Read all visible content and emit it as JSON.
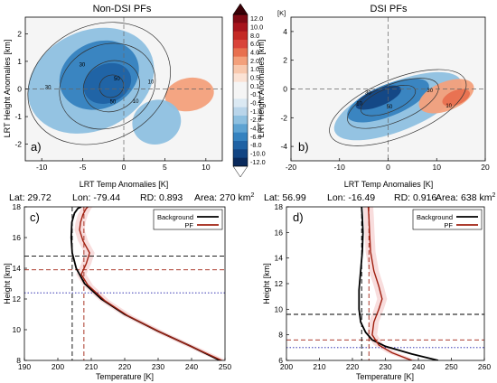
{
  "colorbar": {
    "unit": "[K]",
    "labels": [
      "12.0",
      "10.0",
      "8.0",
      "6.0",
      "4.0",
      "2.0",
      "1.0",
      "0.5",
      "0.1",
      "-0.1",
      "-0.5",
      "-1.0",
      "-2.0",
      "-4.0",
      "-6.0",
      "-8.0",
      "-10.0",
      "-12.0"
    ],
    "colors": [
      "#7f0a14",
      "#a7141c",
      "#c42a25",
      "#d9443a",
      "#e8704f",
      "#f3a07b",
      "#f8c8ad",
      "#fbe2d4",
      "#f5f5f5",
      "#f5f5f5",
      "#dbe9f3",
      "#b9d5ea",
      "#8ec0e0",
      "#5ea3d2",
      "#3582bf",
      "#1f62a4",
      "#124583",
      "#0a2a5c"
    ]
  },
  "chart_data": [
    {
      "panel": "a)",
      "title": "Non-DSI PFs",
      "type": "heatmap",
      "xlabel": "LRT Temp Anomalies [K]",
      "ylabel": "LRT Height Anomalies [km]",
      "xlim": [
        -12,
        12
      ],
      "ylim": [
        -2.6,
        2.6
      ],
      "xticks": [
        -10,
        -5,
        0,
        5,
        10
      ],
      "yticks": [
        -2,
        -1,
        0,
        1,
        2
      ],
      "contour_labels": [
        "10",
        "30",
        "50",
        "50",
        "30",
        "10"
      ],
      "blobs": [
        {
          "x": -4,
          "y": 0.3,
          "rx": 8,
          "ry": 1.8,
          "rot": -25,
          "value": -3
        },
        {
          "x": -3,
          "y": 0.5,
          "rx": 5,
          "ry": 1.2,
          "rot": -25,
          "value": -6
        },
        {
          "x": -2,
          "y": 0.2,
          "rx": 3,
          "ry": 0.7,
          "rot": -25,
          "value": -8
        },
        {
          "x": 8,
          "y": -0.2,
          "rx": 3,
          "ry": 0.6,
          "rot": -10,
          "value": 2
        },
        {
          "x": 4,
          "y": -1.2,
          "rx": 3,
          "ry": 0.8,
          "rot": -20,
          "value": -2
        }
      ],
      "contours": [
        {
          "x": -3,
          "y": 0.2,
          "rx": 9,
          "ry": 2.1,
          "rot": -25
        },
        {
          "x": -2,
          "y": 0.1,
          "rx": 6,
          "ry": 1.5,
          "rot": -25
        },
        {
          "x": -1.5,
          "y": 0.1,
          "rx": 3.5,
          "ry": 0.9,
          "rot": -25
        },
        {
          "x": -1.5,
          "y": 0.1,
          "rx": 1.5,
          "ry": 0.4,
          "rot": -25
        }
      ]
    },
    {
      "panel": "b)",
      "title": "DSI PFs",
      "type": "heatmap",
      "xlabel": "LRT Temp Anomalies [K]",
      "ylabel": "LRT Height Anomalies [km]",
      "xlim": [
        -20,
        20
      ],
      "ylim": [
        -5,
        5
      ],
      "xticks": [
        -20,
        -10,
        0,
        10,
        20
      ],
      "yticks": [
        -4,
        -2,
        0,
        2,
        4
      ],
      "contour_labels": [
        "10",
        "30",
        "50",
        "30",
        "10"
      ],
      "blobs": [
        {
          "x": 2,
          "y": -1.2,
          "rx": 14,
          "ry": 1.7,
          "rot": -22,
          "value": -3
        },
        {
          "x": 0,
          "y": -0.8,
          "rx": 9,
          "ry": 1.1,
          "rot": -22,
          "value": -6
        },
        {
          "x": -2,
          "y": -0.6,
          "rx": 5,
          "ry": 0.6,
          "rot": -22,
          "value": -10
        },
        {
          "x": 12,
          "y": -0.5,
          "rx": 6,
          "ry": 1.0,
          "rot": -22,
          "value": 2
        },
        {
          "x": 14,
          "y": -0.6,
          "rx": 3,
          "ry": 0.5,
          "rot": -22,
          "value": 4
        }
      ],
      "contours": [
        {
          "x": 2,
          "y": -1.3,
          "rx": 15,
          "ry": 2.0,
          "rot": -22
        },
        {
          "x": 1,
          "y": -1.0,
          "rx": 10,
          "ry": 1.3,
          "rot": -22
        },
        {
          "x": 0,
          "y": -0.8,
          "rx": 6,
          "ry": 0.8,
          "rot": -22
        }
      ]
    },
    {
      "panel": "c)",
      "type": "line",
      "header": {
        "lat": "Lat: 29.72",
        "lon": "Lon: -79.44",
        "rd": "RD: 0.893",
        "area": "Area: 270 km",
        "area_exp": "2"
      },
      "xlabel": "Temperature [K]",
      "ylabel": "Height [km]",
      "xlim": [
        190,
        250
      ],
      "ylim": [
        8,
        18
      ],
      "xticks": [
        190,
        200,
        210,
        220,
        230,
        240,
        250
      ],
      "yticks": [
        8,
        10,
        12,
        14,
        16,
        18
      ],
      "series": [
        {
          "name": "Background",
          "color": "#000000",
          "x": [
            248.5,
            240,
            230,
            220,
            213,
            208,
            205.5,
            204.3,
            204.0,
            204.2,
            205.0,
            206.0,
            207.0
          ],
          "y": [
            8.0,
            8.9,
            9.9,
            11.0,
            12.0,
            13.0,
            14.0,
            15.0,
            16.0,
            17.0,
            17.6,
            17.9,
            18.0
          ]
        },
        {
          "name": "PF",
          "color": "#a02010",
          "x": [
            249,
            241,
            231,
            221,
            214,
            209,
            207,
            208.5,
            209.5,
            207.5,
            206.5,
            206.8,
            207.5,
            208.5,
            209.0
          ],
          "y": [
            8.0,
            8.8,
            9.8,
            10.9,
            11.9,
            12.9,
            13.6,
            14.3,
            15.0,
            15.8,
            16.5,
            17.0,
            17.5,
            17.9,
            18.0
          ]
        }
      ],
      "hlines": [
        {
          "y": 14.8,
          "color": "#000000",
          "style": "dash"
        },
        {
          "y": 13.9,
          "color": "#a02010",
          "style": "dash"
        },
        {
          "y": 12.4,
          "color": "#1a1aa8",
          "style": "dot"
        }
      ],
      "vlines": [
        {
          "x": 204.3,
          "color": "#000000",
          "style": "dash"
        },
        {
          "x": 207.8,
          "color": "#a02010",
          "style": "dash"
        }
      ],
      "legend_position": "top-right"
    },
    {
      "panel": "d)",
      "type": "line",
      "header": {
        "lat": "Lat: 56.99",
        "lon": "Lon: -16.49",
        "rd": "RD: 0.916",
        "area": "Area: 638 km",
        "area_exp": "2"
      },
      "xlabel": "Temperature [K]",
      "ylabel": "Height [km]",
      "xlim": [
        200,
        260
      ],
      "ylim": [
        6,
        18
      ],
      "xticks": [
        200,
        210,
        220,
        230,
        240,
        250,
        260
      ],
      "yticks": [
        6,
        8,
        10,
        12,
        14,
        16,
        18
      ],
      "series": [
        {
          "name": "Background",
          "color": "#000000",
          "x": [
            246,
            238,
            230,
            226,
            224,
            222.5,
            222.0,
            222.0,
            222.5,
            223.0,
            223.2,
            223.0,
            222.8
          ],
          "y": [
            6.0,
            6.5,
            7.1,
            7.6,
            8.2,
            9.0,
            10.0,
            11.5,
            13.0,
            14.5,
            16.0,
            17.2,
            18.0
          ]
        },
        {
          "name": "PF",
          "color": "#a02010",
          "x": [
            238,
            232,
            228,
            226,
            226.5,
            228,
            229,
            228,
            226.5,
            225.5,
            225.2,
            225.0,
            224.8
          ],
          "y": [
            6.0,
            6.6,
            7.2,
            8.0,
            9.0,
            10.0,
            10.8,
            11.8,
            13.0,
            14.5,
            16.0,
            17.2,
            18.0
          ]
        }
      ],
      "hlines": [
        {
          "y": 9.6,
          "color": "#000000",
          "style": "dash"
        },
        {
          "y": 7.6,
          "color": "#a02010",
          "style": "dash"
        },
        {
          "y": 7.0,
          "color": "#1a1aa8",
          "style": "dot"
        }
      ],
      "vlines": [
        {
          "x": 222.8,
          "color": "#000000",
          "style": "dash"
        },
        {
          "x": 225.0,
          "color": "#a02010",
          "style": "dash"
        }
      ],
      "legend_position": "top-right"
    }
  ]
}
